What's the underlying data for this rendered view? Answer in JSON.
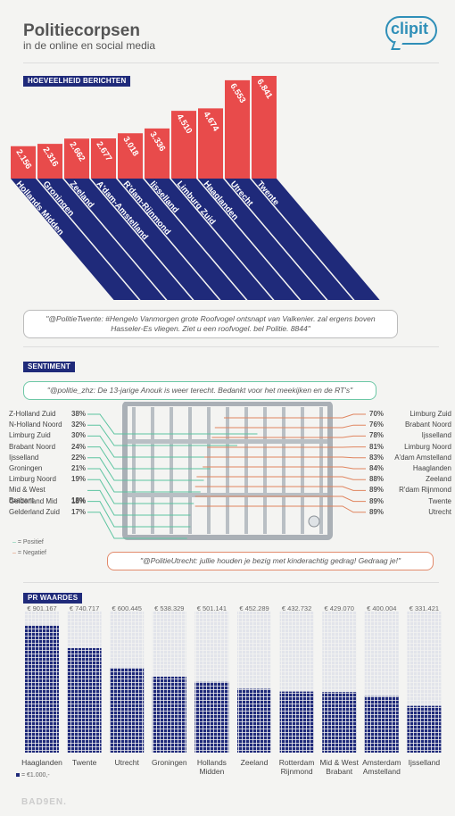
{
  "header": {
    "title": "Politiecorpsen",
    "subtitle": "in de online en social media",
    "logo_text": "clipit"
  },
  "sections": {
    "messages": "HOEVEELHEID BERICHTEN",
    "sentiment": "SENTIMENT",
    "pr": "PR WAARDES"
  },
  "quotes": {
    "twente": "\"@PolitieTwente: #Hengelo Vanmorgen grote Roofvogel ontsnapt van Valkenier. zal ergens boven Hasseler-Es vliegen. Ziet u een roofvogel. bel Politie. 8844\"",
    "zhz": "\"@politie_zhz: De 13-jarige Anouk is weer terecht. Bedankt voor het meekijken en de RT's\"",
    "utrecht": "\"@PolitieUtrecht: jullie houden je bezig met kinderachtig gedrag! Gedraag je!\""
  },
  "legend": {
    "positive": "= Positief",
    "negative": "= Negatief",
    "pr_unit": "= €1.000,-"
  },
  "colors": {
    "red": "#e84b4b",
    "blue": "#1f2a7a",
    "green": "#5cc4a0",
    "orange": "#e0855f",
    "grid": "#9aa0a6"
  },
  "footer": "BAD9EN.",
  "chart_data": [
    {
      "type": "bar",
      "title": "HOEVEELHEID BERICHTEN",
      "categories": [
        "Hollands Midden",
        "Groningen",
        "Zeeland",
        "A'dam-Amstelland",
        "R'dam-Rijnmond",
        "Ijsselland",
        "Limburg Zuid",
        "Haaglanden",
        "Utrecht",
        "Twente"
      ],
      "value_labels": [
        "2.156",
        "2.316",
        "2.662",
        "2.677",
        "3.018",
        "3.336",
        "4.510",
        "4.674",
        "6.553",
        "6.841"
      ],
      "values": [
        2156,
        2316,
        2662,
        2677,
        3018,
        3336,
        4510,
        4674,
        6553,
        6841
      ]
    },
    {
      "type": "bar",
      "title": "SENTIMENT",
      "series": [
        {
          "name": "Positief",
          "categories": [
            "Z-Holland Zuid",
            "N-Holland Noord",
            "Limburg Zuid",
            "Brabant Noord",
            "Ijsselland",
            "Groningen",
            "Limburg Noord",
            "Mid & West Brabant",
            "Gelderland Mid",
            "Gelderland Zuid"
          ],
          "labels": [
            "38%",
            "32%",
            "30%",
            "24%",
            "22%",
            "21%",
            "19%",
            "18%",
            "18%",
            "17%"
          ],
          "values": [
            38,
            32,
            30,
            24,
            22,
            21,
            19,
            18,
            18,
            17
          ]
        },
        {
          "name": "Negatief",
          "categories": [
            "Limburg Zuid",
            "Brabant Noord",
            "Ijsselland",
            "Limburg Noord",
            "A'dam Amstelland",
            "Haaglanden",
            "Zeeland",
            "R'dam Rijnmond",
            "Twente",
            "Utrecht"
          ],
          "labels": [
            "70%",
            "76%",
            "78%",
            "81%",
            "83%",
            "84%",
            "88%",
            "89%",
            "89%",
            "89%"
          ],
          "values": [
            70,
            76,
            78,
            81,
            83,
            84,
            88,
            89,
            89,
            89
          ]
        }
      ]
    },
    {
      "type": "bar",
      "title": "PR WAARDES",
      "categories": [
        "Haaglanden",
        "Twente",
        "Utrecht",
        "Groningen",
        "Hollands Midden",
        "Zeeland",
        "Rotterdam Rijnmond",
        "Mid & West Brabant",
        "Amsterdam Amstelland",
        "Ijsselland"
      ],
      "value_labels": [
        "€ 901.167",
        "€ 740.717",
        "€ 600.445",
        "€ 538.329",
        "€ 501.141",
        "€ 452.289",
        "€ 432.732",
        "€ 429.070",
        "€ 400.004",
        "€ 331.421"
      ],
      "values": [
        901167,
        740717,
        600445,
        538329,
        501141,
        452289,
        432732,
        429070,
        400004,
        331421
      ],
      "ylim": [
        0,
        1000000
      ]
    }
  ]
}
